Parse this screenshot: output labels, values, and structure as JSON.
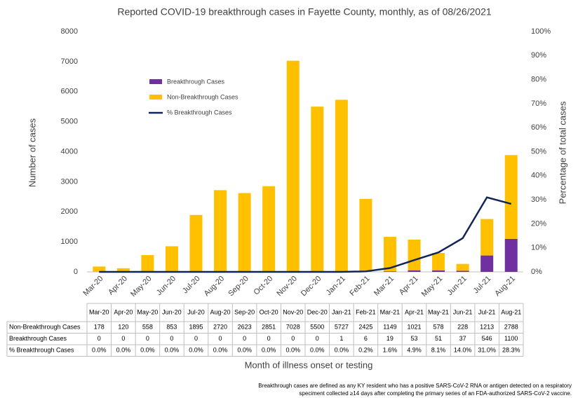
{
  "chart_data": {
    "type": "bar",
    "stacked": true,
    "title": "Reported COVID-19 breakthrough cases in Fayette County, monthly, as of 08/26/2021",
    "y_label": "Number of cases",
    "y2_label": "Percentage of total cases",
    "x_label": "Month of illness onset or testing",
    "footnote": [
      "Breakthrough cases are defined as any KY resident who has a positive SARS-CoV-2 RNA or antigen detected on a respiratory",
      "speciment collected ≥14 days after completing the primary series of an FDA-authorized SARS-CoV-2 vaccine."
    ],
    "categories": [
      "Mar-20",
      "Apr-20",
      "May-20",
      "Jun-20",
      "Jul-20",
      "Aug-20",
      "Sep-20",
      "Oct-20",
      "Nov-20",
      "Dec-20",
      "Jan-21",
      "Feb-21",
      "Mar-21",
      "Apr-21",
      "May-21",
      "Jun-21",
      "Jul-21",
      "Aug-21"
    ],
    "series": [
      {
        "name": "Breakthrough Cases",
        "color": "#7030a0",
        "values": [
          0,
          0,
          0,
          0,
          0,
          0,
          0,
          0,
          0,
          0,
          1,
          6,
          19,
          53,
          51,
          37,
          546,
          1100
        ]
      },
      {
        "name": "Non-Breakthrough Cases",
        "color": "#ffc000",
        "values": [
          178,
          120,
          558,
          853,
          1895,
          2720,
          2623,
          2851,
          7028,
          5500,
          5727,
          2425,
          1149,
          1021,
          578,
          228,
          1213,
          2788
        ]
      },
      {
        "name": "% Breakthrough Cases",
        "color": "#10245a",
        "type": "line",
        "axis": "y2",
        "values": [
          0.0,
          0.0,
          0.0,
          0.0,
          0.0,
          0.0,
          0.0,
          0.0,
          0.0,
          0.0,
          0.0,
          0.2,
          1.6,
          4.9,
          8.1,
          14.0,
          31.0,
          28.3
        ],
        "value_labels": [
          "0.0%",
          "0.0%",
          "0.0%",
          "0.0%",
          "0.0%",
          "0.0%",
          "0.0%",
          "0.0%",
          "0.0%",
          "0.0%",
          "0.0%",
          "0.2%",
          "1.6%",
          "4.9%",
          "8.1%",
          "14.0%",
          "31.0%",
          "28.3%"
        ]
      }
    ],
    "ylim": [
      0,
      8000
    ],
    "yticks": [
      0,
      1000,
      2000,
      3000,
      4000,
      5000,
      6000,
      7000,
      8000
    ],
    "y2lim": [
      0,
      100
    ],
    "y2ticks": [
      {
        "value": 0,
        "label": "0%"
      },
      {
        "value": 10,
        "label": "10%"
      },
      {
        "value": 20,
        "label": "20%"
      },
      {
        "value": 30,
        "label": "30%"
      },
      {
        "value": 40,
        "label": "40%"
      },
      {
        "value": 50,
        "label": "50%"
      },
      {
        "value": 60,
        "label": "60%"
      },
      {
        "value": 70,
        "label": "70%"
      },
      {
        "value": 80,
        "label": "80%"
      },
      {
        "value": 90,
        "label": "90%"
      },
      {
        "value": 100,
        "label": "100%"
      }
    ],
    "grid": false
  }
}
